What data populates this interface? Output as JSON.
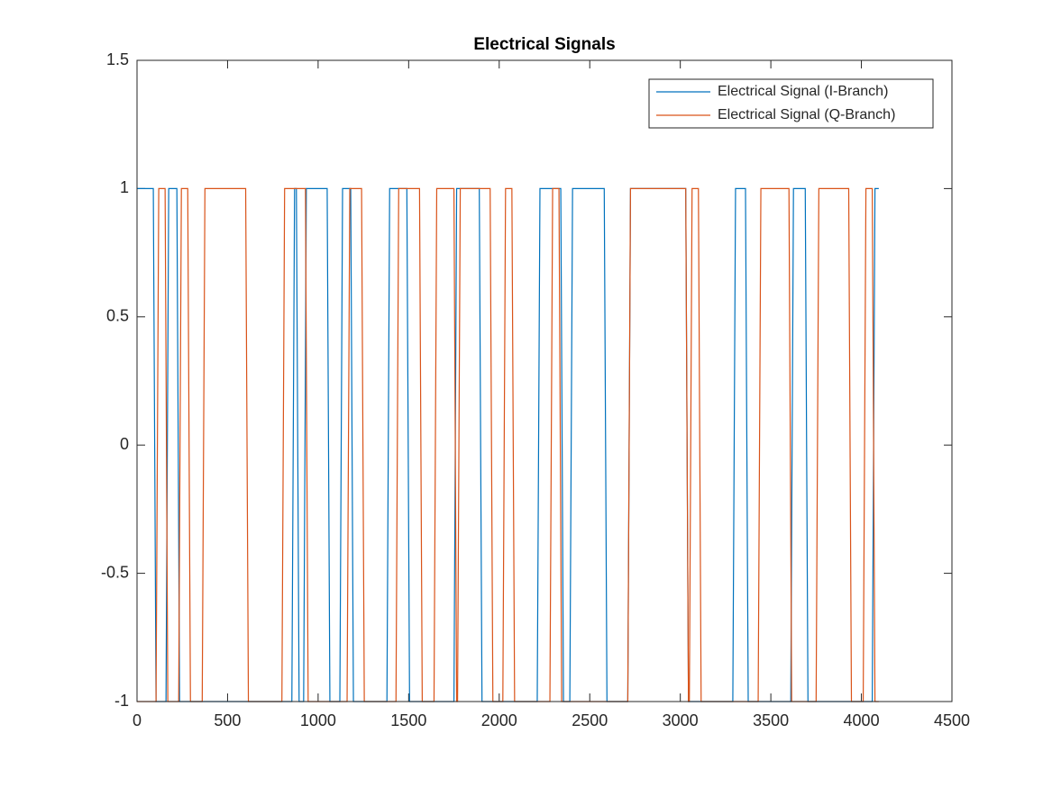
{
  "chart_data": {
    "type": "line",
    "title": "Electrical Signals",
    "series": [
      {
        "name": "Electrical Signal (I-Branch)",
        "color": "#0072bd",
        "x": [
          0,
          90,
          105,
          160,
          175,
          220,
          235,
          855,
          870,
          880,
          895,
          920,
          935,
          1050,
          1065,
          1120,
          1135,
          1180,
          1195,
          1380,
          1395,
          1490,
          1505,
          1750,
          1765,
          1890,
          1905,
          2210,
          2225,
          2340,
          2355,
          2390,
          2405,
          2580,
          2595,
          2710,
          2725,
          3030,
          3045,
          3290,
          3305,
          3360,
          3375,
          3610,
          3625,
          3690,
          3705,
          4060,
          4075,
          4096
        ],
        "values": [
          1,
          1,
          -1,
          -1,
          1,
          1,
          -1,
          -1,
          1,
          1,
          -1,
          -1,
          1,
          1,
          -1,
          -1,
          1,
          1,
          -1,
          -1,
          1,
          1,
          -1,
          -1,
          1,
          1,
          -1,
          -1,
          1,
          1,
          -1,
          -1,
          1,
          1,
          -1,
          -1,
          1,
          1,
          -1,
          -1,
          1,
          1,
          -1,
          -1,
          1,
          1,
          -1,
          -1,
          1,
          1
        ]
      },
      {
        "name": "Electrical Signal (Q-Branch)",
        "color": "#d95319",
        "x": [
          0,
          105,
          120,
          155,
          170,
          230,
          245,
          280,
          295,
          360,
          375,
          600,
          615,
          800,
          815,
          930,
          945,
          1160,
          1175,
          1240,
          1255,
          1430,
          1445,
          1560,
          1575,
          1640,
          1655,
          1750,
          1765,
          1770,
          1785,
          1950,
          1965,
          2020,
          2035,
          2070,
          2085,
          2280,
          2295,
          2330,
          2345,
          2710,
          2725,
          3030,
          3045,
          3050,
          3065,
          3100,
          3115,
          3430,
          3445,
          3600,
          3615,
          3750,
          3765,
          3930,
          3945,
          4010,
          4025,
          4060,
          4075,
          4096
        ],
        "values": [
          -1,
          -1,
          1,
          1,
          -1,
          -1,
          1,
          1,
          -1,
          -1,
          1,
          1,
          -1,
          -1,
          1,
          1,
          -1,
          -1,
          1,
          1,
          -1,
          -1,
          1,
          1,
          -1,
          -1,
          1,
          1,
          -1,
          -1,
          1,
          1,
          -1,
          -1,
          1,
          1,
          -1,
          -1,
          1,
          1,
          -1,
          -1,
          1,
          1,
          -1,
          -1,
          1,
          1,
          -1,
          -1,
          1,
          1,
          -1,
          -1,
          1,
          1,
          -1,
          -1,
          1,
          1,
          -1,
          -1
        ]
      }
    ],
    "xlim": [
      0,
      4500
    ],
    "xticks": [
      0,
      500,
      1000,
      1500,
      2000,
      2500,
      3000,
      3500,
      4000,
      4500
    ],
    "ylim": [
      -1,
      1.5
    ],
    "yticks": [
      -1,
      -0.5,
      0,
      0.5,
      1,
      1.5
    ],
    "legend": "upper right"
  }
}
